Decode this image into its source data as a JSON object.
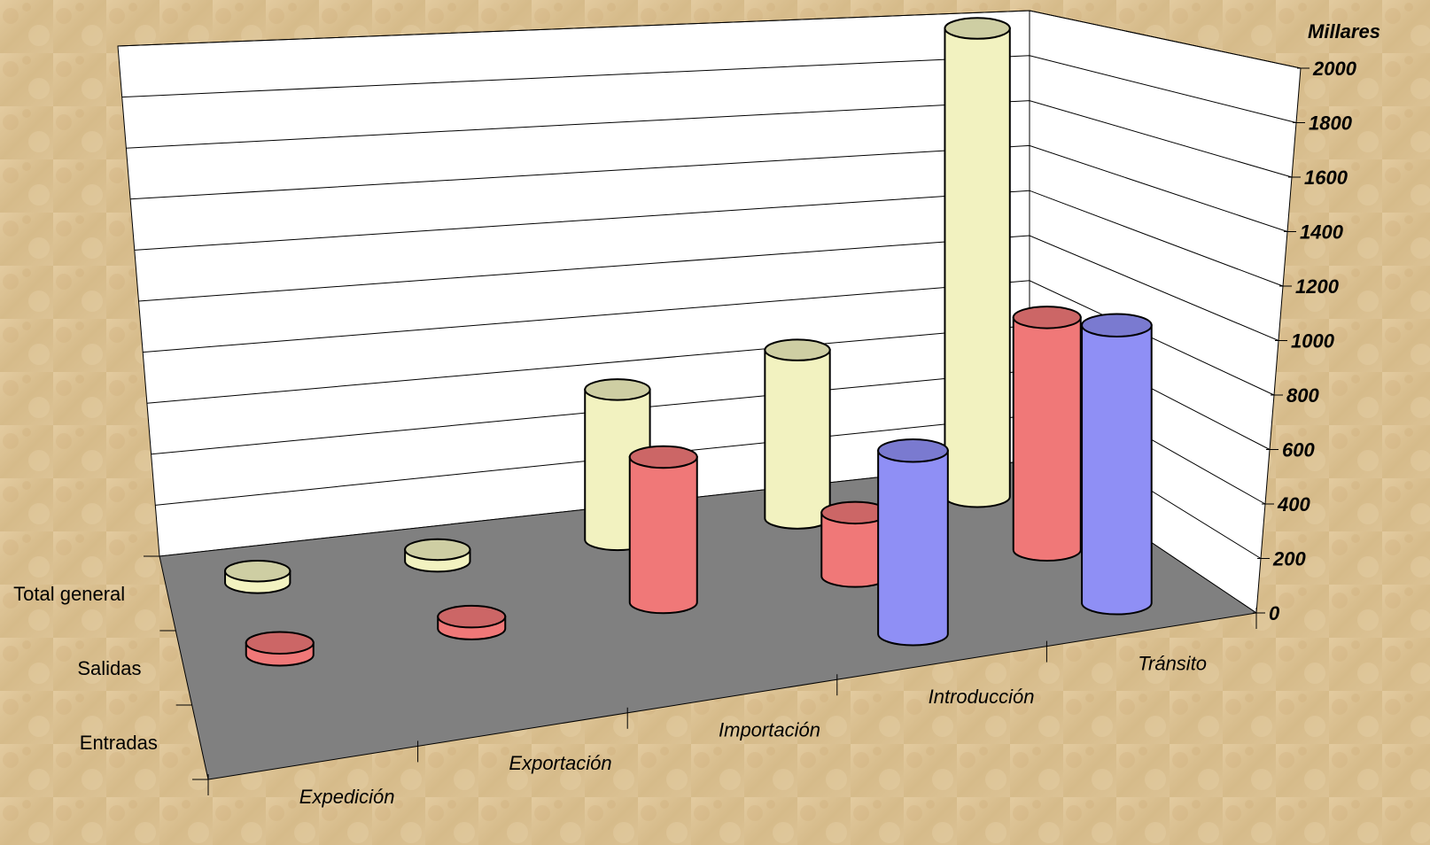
{
  "chart_data": {
    "type": "bar",
    "style": "3d-cylinder",
    "unit_label": "Millares",
    "categories": [
      "Expedición",
      "Exportación",
      "Importación",
      "Introducción",
      "Tránsito"
    ],
    "series_order_front_to_back": [
      "Entradas",
      "Salidas",
      "Total general"
    ],
    "series": [
      {
        "name": "Entradas",
        "color": "#8f8ff5",
        "values": [
          0,
          0,
          0,
          680,
          1030
        ]
      },
      {
        "name": "Salidas",
        "color": "#f07878",
        "values": [
          45,
          45,
          550,
          240,
          880
        ]
      },
      {
        "name": "Total general",
        "color": "#f2f2c0",
        "values": [
          45,
          45,
          580,
          650,
          1810
        ]
      }
    ],
    "y_ticks": [
      "0",
      "200",
      "400",
      "600",
      "800",
      "1000",
      "1200",
      "1400",
      "1600",
      "1800",
      "2000"
    ],
    "ylim": [
      0,
      2000
    ],
    "grid": true,
    "colors": {
      "background": "#d9bf8f",
      "walls": "#ffffff",
      "floor": "#808080",
      "gridlines": "#000000"
    }
  }
}
